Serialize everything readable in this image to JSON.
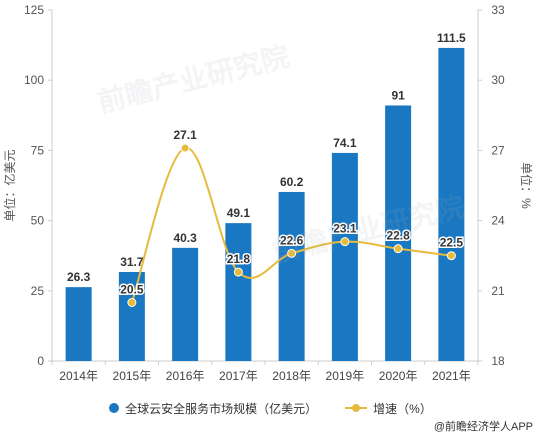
{
  "chart_data": {
    "type": "bar",
    "categories": [
      "2014年",
      "2015年",
      "2016年",
      "2017年",
      "2018年",
      "2019年",
      "2020年",
      "2021年"
    ],
    "series": [
      {
        "name": "全球云安全服务市场规模（亿美元）",
        "type": "bar",
        "values": [
          26.3,
          31.7,
          40.3,
          49.1,
          60.2,
          74.1,
          91,
          111.5
        ],
        "labels": [
          "26.3",
          "31.7",
          "40.3",
          "49.1",
          "60.2",
          "74.1",
          "91",
          "111.5"
        ],
        "color": "#1a78c2",
        "axis": "left"
      },
      {
        "name": "增速（%）",
        "type": "line",
        "values": [
          null,
          20.5,
          27.1,
          21.8,
          22.6,
          23.1,
          22.8,
          22.5
        ],
        "labels": [
          "",
          "20.5",
          "27.1",
          "21.8",
          "22.6",
          "23.1",
          "22.8",
          "22.5"
        ],
        "color": "#e6bb3c",
        "axis": "right"
      }
    ],
    "ylabel": "单位：亿美元",
    "ylabel_right": "单位：%",
    "ylim": [
      0,
      125
    ],
    "yticks": [
      "0",
      "25",
      "50",
      "75",
      "100",
      "125"
    ],
    "ylim_right": [
      18,
      33
    ],
    "yticks_right": [
      "18",
      "21",
      "24",
      "27",
      "30",
      "33"
    ],
    "grid": false,
    "legend_position": "bottom"
  },
  "legend": {
    "bar_label": "全球云安全服务市场规模（亿美元）",
    "line_label": "增速（%）"
  },
  "source": "@前瞻经济学人APP",
  "watermarks": [
    "前瞻产业研究院",
    "前瞻产业研究院"
  ]
}
